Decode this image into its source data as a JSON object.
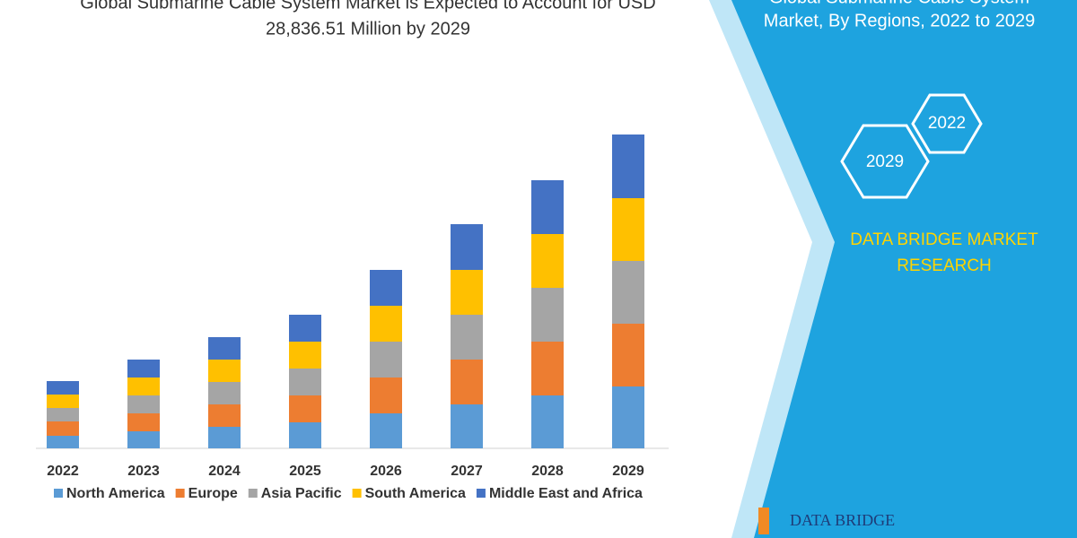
{
  "chart_data": {
    "type": "stacked-bar",
    "title_lines": [
      "Global Submarine Cable System Market is Expected to Account for USD",
      "28,836.51 Million by 2029"
    ],
    "categories": [
      "2022",
      "2023",
      "2024",
      "2025",
      "2026",
      "2027",
      "2028",
      "2029"
    ],
    "series": [
      {
        "name": "North America",
        "color": "#5b9bd5",
        "values": [
          14,
          19,
          24,
          29,
          39,
          49,
          59,
          69
        ]
      },
      {
        "name": "Europe",
        "color": "#ed7d31",
        "values": [
          16,
          20,
          25,
          30,
          40,
          50,
          60,
          70
        ]
      },
      {
        "name": "Asia Pacific",
        "color": "#a5a5a5",
        "values": [
          15,
          20,
          25,
          30,
          40,
          50,
          60,
          70
        ]
      },
      {
        "name": "South America",
        "color": "#ffc000",
        "values": [
          15,
          20,
          25,
          30,
          40,
          50,
          60,
          70
        ]
      },
      {
        "name": "Middle East and Africa",
        "color": "#4472c4",
        "values": [
          15,
          20,
          25,
          30,
          40,
          51,
          60,
          71
        ]
      }
    ]
  },
  "panel": {
    "title_lines": [
      "Global Submarine Cable System",
      "Market, By Regions, 2022 to 2029"
    ],
    "hexagons": [
      "2022",
      "2029"
    ],
    "brand_lines": [
      "DATA BRIDGE MARKET",
      "RESEARCH"
    ],
    "logo": "DATA BRIDGE"
  }
}
